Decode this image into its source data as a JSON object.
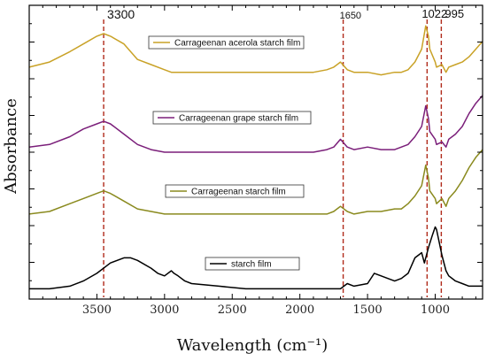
{
  "chart_data": {
    "type": "line",
    "title": "",
    "xlabel": "Wavelength (cm⁻¹)",
    "ylabel": "Absorbance",
    "xlim": [
      4000,
      650
    ],
    "x_reversed": true,
    "x_ticks": [
      3500,
      3000,
      2500,
      2000,
      1500,
      1000
    ],
    "y_ticks_labeled": false,
    "grid": false,
    "legend_placement": "individual label boxes above each curve",
    "annotations": [
      {
        "label": "3300",
        "x": 3450
      },
      {
        "label": "1650",
        "x": 1680
      },
      {
        "label": "1022",
        "x": 1060
      },
      {
        "label": "995",
        "x": 955
      }
    ],
    "series": [
      {
        "name": "Carrageenan acerola starch film",
        "color": "#c9a227",
        "x": [
          4000,
          3850,
          3700,
          3600,
          3500,
          3450,
          3400,
          3300,
          3200,
          3100,
          3000,
          2950,
          2900,
          2800,
          2600,
          2400,
          2200,
          2000,
          1900,
          1800,
          1750,
          1700,
          1650,
          1600,
          1500,
          1400,
          1300,
          1250,
          1200,
          1150,
          1100,
          1070,
          1050,
          1040,
          1000,
          990,
          950,
          920,
          900,
          850,
          800,
          750,
          700,
          650
        ],
        "values": [
          0.88,
          0.9,
          0.94,
          0.97,
          1.0,
          1.01,
          1.0,
          0.97,
          0.91,
          0.89,
          0.87,
          0.86,
          0.86,
          0.86,
          0.86,
          0.86,
          0.86,
          0.86,
          0.86,
          0.87,
          0.88,
          0.9,
          0.87,
          0.86,
          0.86,
          0.85,
          0.86,
          0.86,
          0.87,
          0.9,
          0.95,
          1.04,
          1.0,
          0.95,
          0.9,
          0.88,
          0.89,
          0.86,
          0.88,
          0.89,
          0.9,
          0.92,
          0.95,
          0.98
        ]
      },
      {
        "name": "Carrageenan grape starch film",
        "color": "#7b1f7a",
        "x": [
          4000,
          3850,
          3700,
          3600,
          3500,
          3450,
          3400,
          3300,
          3200,
          3100,
          3000,
          2950,
          2900,
          2800,
          2600,
          2400,
          2200,
          2000,
          1900,
          1800,
          1750,
          1700,
          1650,
          1600,
          1500,
          1400,
          1300,
          1250,
          1200,
          1150,
          1100,
          1070,
          1050,
          1040,
          1000,
          990,
          950,
          920,
          900,
          850,
          800,
          750,
          700,
          650
        ],
        "values": [
          0.57,
          0.58,
          0.61,
          0.64,
          0.66,
          0.67,
          0.66,
          0.62,
          0.58,
          0.56,
          0.55,
          0.55,
          0.55,
          0.55,
          0.55,
          0.55,
          0.55,
          0.55,
          0.55,
          0.56,
          0.57,
          0.6,
          0.57,
          0.56,
          0.57,
          0.56,
          0.56,
          0.57,
          0.58,
          0.61,
          0.65,
          0.73,
          0.68,
          0.63,
          0.6,
          0.58,
          0.59,
          0.57,
          0.6,
          0.62,
          0.65,
          0.7,
          0.74,
          0.77
        ]
      },
      {
        "name": "Carrageenan starch film",
        "color": "#8a8a1e",
        "x": [
          4000,
          3850,
          3700,
          3600,
          3500,
          3450,
          3400,
          3300,
          3200,
          3100,
          3000,
          2950,
          2900,
          2800,
          2600,
          2400,
          2200,
          2000,
          1900,
          1800,
          1750,
          1700,
          1650,
          1600,
          1500,
          1400,
          1300,
          1250,
          1200,
          1150,
          1100,
          1070,
          1050,
          1040,
          1000,
          990,
          950,
          920,
          900,
          850,
          800,
          750,
          700,
          650
        ],
        "values": [
          0.31,
          0.32,
          0.35,
          0.37,
          0.39,
          0.4,
          0.39,
          0.36,
          0.33,
          0.32,
          0.31,
          0.31,
          0.31,
          0.31,
          0.31,
          0.31,
          0.31,
          0.31,
          0.31,
          0.31,
          0.32,
          0.34,
          0.32,
          0.31,
          0.32,
          0.32,
          0.33,
          0.33,
          0.35,
          0.38,
          0.42,
          0.5,
          0.45,
          0.4,
          0.37,
          0.35,
          0.37,
          0.34,
          0.37,
          0.4,
          0.44,
          0.49,
          0.53,
          0.56
        ]
      },
      {
        "name": "starch film",
        "color": "#000000",
        "x": [
          4000,
          3850,
          3700,
          3600,
          3500,
          3400,
          3300,
          3250,
          3200,
          3100,
          3050,
          3000,
          2950,
          2930,
          2900,
          2850,
          2800,
          2600,
          2400,
          2200,
          2000,
          1800,
          1700,
          1650,
          1600,
          1500,
          1450,
          1400,
          1350,
          1300,
          1250,
          1200,
          1150,
          1100,
          1080,
          1050,
          1020,
          1000,
          990,
          950,
          920,
          900,
          850,
          800,
          750,
          700,
          650
        ],
        "values": [
          0.02,
          0.02,
          0.03,
          0.05,
          0.08,
          0.12,
          0.14,
          0.14,
          0.13,
          0.1,
          0.08,
          0.07,
          0.09,
          0.08,
          0.07,
          0.05,
          0.04,
          0.03,
          0.02,
          0.02,
          0.02,
          0.02,
          0.02,
          0.04,
          0.03,
          0.04,
          0.08,
          0.07,
          0.06,
          0.05,
          0.06,
          0.08,
          0.14,
          0.16,
          0.12,
          0.18,
          0.23,
          0.26,
          0.25,
          0.15,
          0.09,
          0.07,
          0.05,
          0.04,
          0.03,
          0.03,
          0.03
        ]
      }
    ]
  }
}
